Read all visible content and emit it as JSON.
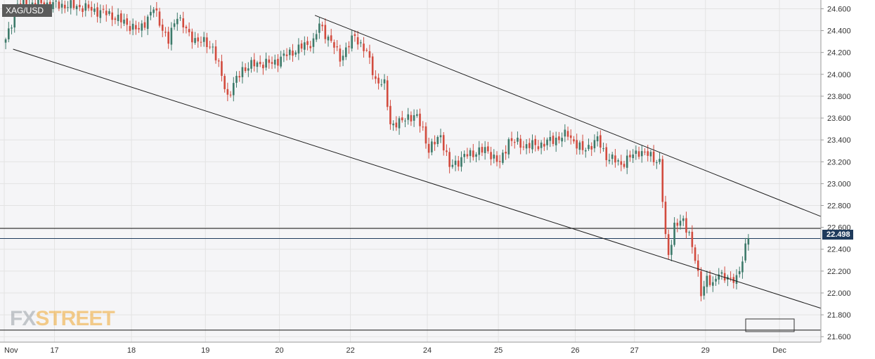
{
  "symbol": "XAG/USD",
  "logo": {
    "part1": "FX",
    "part2": "STREET"
  },
  "last_price_label": "22.498",
  "colors": {
    "up": "#3d7a6a",
    "down": "#d24b3e",
    "grid": "#e3e3e3",
    "plot_bg": "#f5f5f7",
    "price_line": "#1f3b5c",
    "trendline": "#1a1a1a"
  },
  "chart_data": {
    "type": "candlestick",
    "title": "",
    "ylim": [
      21.55,
      24.68
    ],
    "y_ticks": [
      "24.600",
      "24.400",
      "24.200",
      "24.000",
      "23.800",
      "23.600",
      "23.400",
      "23.200",
      "23.000",
      "22.800",
      "22.600",
      "22.400",
      "22.200",
      "22.000",
      "21.800",
      "21.600"
    ],
    "x_ticks": [
      "Nov",
      "17",
      "18",
      "19",
      "20",
      "22",
      "24",
      "25",
      "26",
      "27",
      "29",
      "Dec"
    ],
    "x_tick_index": [
      0,
      17,
      43,
      68,
      93,
      117,
      143,
      167,
      193,
      213,
      237,
      262
    ],
    "num_slots": 276,
    "last_price": 22.498,
    "horizontal_levels": [
      22.59,
      21.66
    ],
    "trendlines": [
      {
        "from": [
          3,
          24.23
        ],
        "to": [
          276,
          21.86
        ]
      },
      {
        "from": [
          105,
          24.54
        ],
        "to": [
          276,
          22.7
        ]
      }
    ],
    "anchors": [
      [
        0,
        24.3
      ],
      [
        4,
        24.65
      ],
      [
        10,
        24.65
      ],
      [
        25,
        24.62
      ],
      [
        35,
        24.55
      ],
      [
        45,
        24.4
      ],
      [
        50,
        24.6
      ],
      [
        55,
        24.3
      ],
      [
        58,
        24.55
      ],
      [
        62,
        24.35
      ],
      [
        70,
        24.25
      ],
      [
        75,
        23.8
      ],
      [
        80,
        24.05
      ],
      [
        85,
        24.1
      ],
      [
        90,
        24.1
      ],
      [
        95,
        24.18
      ],
      [
        100,
        24.25
      ],
      [
        104,
        24.3
      ],
      [
        106,
        24.45
      ],
      [
        110,
        24.3
      ],
      [
        113,
        24.15
      ],
      [
        118,
        24.35
      ],
      [
        122,
        24.2
      ],
      [
        125,
        23.95
      ],
      [
        128,
        23.9
      ],
      [
        130,
        23.55
      ],
      [
        133,
        23.55
      ],
      [
        136,
        23.62
      ],
      [
        139,
        23.6
      ],
      [
        141,
        23.5
      ],
      [
        143,
        23.3
      ],
      [
        147,
        23.45
      ],
      [
        150,
        23.15
      ],
      [
        155,
        23.25
      ],
      [
        160,
        23.3
      ],
      [
        163,
        23.3
      ],
      [
        167,
        23.18
      ],
      [
        170,
        23.4
      ],
      [
        175,
        23.35
      ],
      [
        180,
        23.35
      ],
      [
        185,
        23.4
      ],
      [
        190,
        23.45
      ],
      [
        195,
        23.3
      ],
      [
        200,
        23.4
      ],
      [
        203,
        23.25
      ],
      [
        208,
        23.18
      ],
      [
        214,
        23.3
      ],
      [
        218,
        23.25
      ],
      [
        221,
        23.2
      ],
      [
        223,
        22.5
      ],
      [
        224,
        22.35
      ],
      [
        226,
        22.62
      ],
      [
        229,
        22.65
      ],
      [
        231,
        22.55
      ],
      [
        233,
        22.3
      ],
      [
        235,
        22.0
      ],
      [
        237,
        22.15
      ],
      [
        239,
        22.05
      ],
      [
        241,
        22.2
      ],
      [
        243,
        22.15
      ],
      [
        245,
        22.1
      ],
      [
        247,
        22.15
      ],
      [
        249,
        22.3
      ],
      [
        251,
        22.5
      ]
    ],
    "series": [
      {
        "values": []
      }
    ]
  }
}
